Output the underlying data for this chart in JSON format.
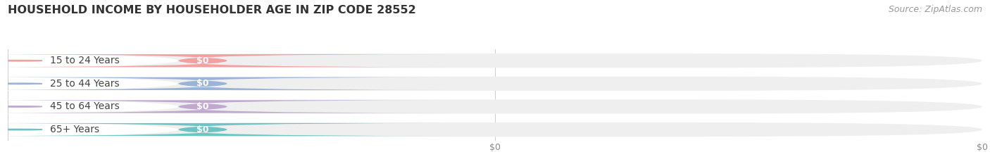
{
  "title": "HOUSEHOLD INCOME BY HOUSEHOLDER AGE IN ZIP CODE 28552",
  "source": "Source: ZipAtlas.com",
  "categories": [
    "15 to 24 Years",
    "25 to 44 Years",
    "45 to 64 Years",
    "65+ Years"
  ],
  "values": [
    0,
    0,
    0,
    0
  ],
  "bar_colors": [
    "#f2a0a0",
    "#9ab4d8",
    "#c0a8d0",
    "#6ec4c4"
  ],
  "background_color": "#ffffff",
  "bar_bg_color": "#efefef",
  "label_bg_color": "#ffffff",
  "title_fontsize": 11.5,
  "source_fontsize": 9,
  "cat_fontsize": 10,
  "val_fontsize": 9,
  "figsize": [
    14.06,
    2.33
  ],
  "dpi": 100
}
